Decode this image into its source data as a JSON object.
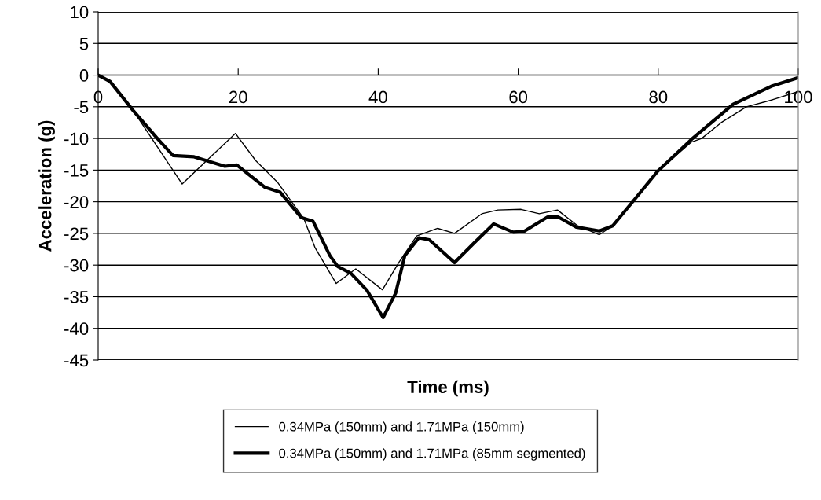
{
  "chart_data": {
    "type": "line",
    "xlabel": "Time (ms)",
    "ylabel": "Acceleration (g)",
    "xlim": [
      0,
      100
    ],
    "xticks": [
      0,
      20,
      40,
      60,
      80,
      100
    ],
    "ylim": [
      -45,
      10
    ],
    "yticks": [
      -45,
      -40,
      -35,
      -30,
      -25,
      -20,
      -15,
      -10,
      -5,
      0,
      5,
      10
    ],
    "grid": "y",
    "legend": "bottom",
    "marker": "none",
    "line_style": "solid",
    "series": [
      {
        "name": "0.34MPa (150mm) and 1.71MPa (150mm)",
        "color": "#000000",
        "x": [
          0,
          1.7,
          5.0,
          8.8,
          12.0,
          15.5,
          19.6,
          22.5,
          25.6,
          29.4,
          31.0,
          34.0,
          36.8,
          40.6,
          43.0,
          45.5,
          48.5,
          50.9,
          54.8,
          57.1,
          60.4,
          63.0,
          65.6,
          68.5,
          71.6,
          73.5,
          76.5,
          79.9,
          84.7,
          86.2,
          89.0,
          92.6,
          96.3,
          100
        ],
        "values": [
          0,
          -1.0,
          -5.6,
          -11.9,
          -17.2,
          -13.5,
          -9.2,
          -13.5,
          -16.9,
          -22.7,
          -27.3,
          -32.9,
          -30.6,
          -33.9,
          -29.5,
          -25.4,
          -24.2,
          -25.0,
          -21.9,
          -21.3,
          -21.2,
          -21.9,
          -21.3,
          -23.8,
          -25.2,
          -23.8,
          -19.8,
          -15.2,
          -10.6,
          -10.0,
          -7.5,
          -5.0,
          -3.9,
          -2.6
        ]
      },
      {
        "name": "0.34MPa (150mm) and 1.71MPa (85mm segmented)",
        "color": "#000000",
        "x": [
          0,
          1.7,
          5.0,
          8.6,
          10.7,
          13.7,
          18.1,
          19.8,
          23.8,
          26.0,
          29.0,
          30.7,
          33.1,
          34.2,
          36.1,
          38.4,
          40.7,
          42.5,
          43.8,
          45.8,
          47.3,
          50.9,
          53.7,
          56.5,
          59.3,
          60.8,
          64.2,
          65.7,
          68.3,
          71.6,
          73.5,
          76.5,
          79.9,
          84.7,
          90.7,
          96.3,
          100
        ],
        "values": [
          0,
          -1.0,
          -5.6,
          -10.2,
          -12.7,
          -12.9,
          -14.4,
          -14.2,
          -17.7,
          -18.5,
          -22.5,
          -23.1,
          -28.5,
          -30.2,
          -31.3,
          -34.0,
          -38.3,
          -34.4,
          -28.5,
          -25.7,
          -26.0,
          -29.6,
          -26.5,
          -23.5,
          -24.8,
          -24.7,
          -22.4,
          -22.4,
          -24.0,
          -24.6,
          -23.8,
          -19.8,
          -15.2,
          -10.2,
          -4.6,
          -1.7,
          -0.4
        ]
      }
    ]
  }
}
